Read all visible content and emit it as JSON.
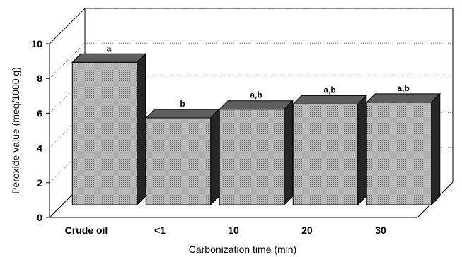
{
  "chart_data": {
    "type": "bar",
    "title": "",
    "xlabel": "Carbonization time (min)",
    "ylabel": "Peroxide value (meq/1000 g)",
    "ylim": [
      0,
      10
    ],
    "yticks": [
      "0",
      "2",
      "4",
      "6",
      "8",
      "10"
    ],
    "grid": true,
    "three_d": true,
    "categories": [
      "Crude oil",
      "<1",
      "10",
      "20",
      "30"
    ],
    "values": [
      8.2,
      5.0,
      5.5,
      5.8,
      5.9
    ],
    "annotations": [
      "a",
      "b",
      "a,b",
      "a,b",
      "a,b"
    ],
    "colors": {
      "bar_front": "#a6a6a6",
      "bar_top": "#5e5e5e",
      "bar_side": "#262626",
      "grid": "#555555",
      "floor": "#ffffff"
    }
  }
}
